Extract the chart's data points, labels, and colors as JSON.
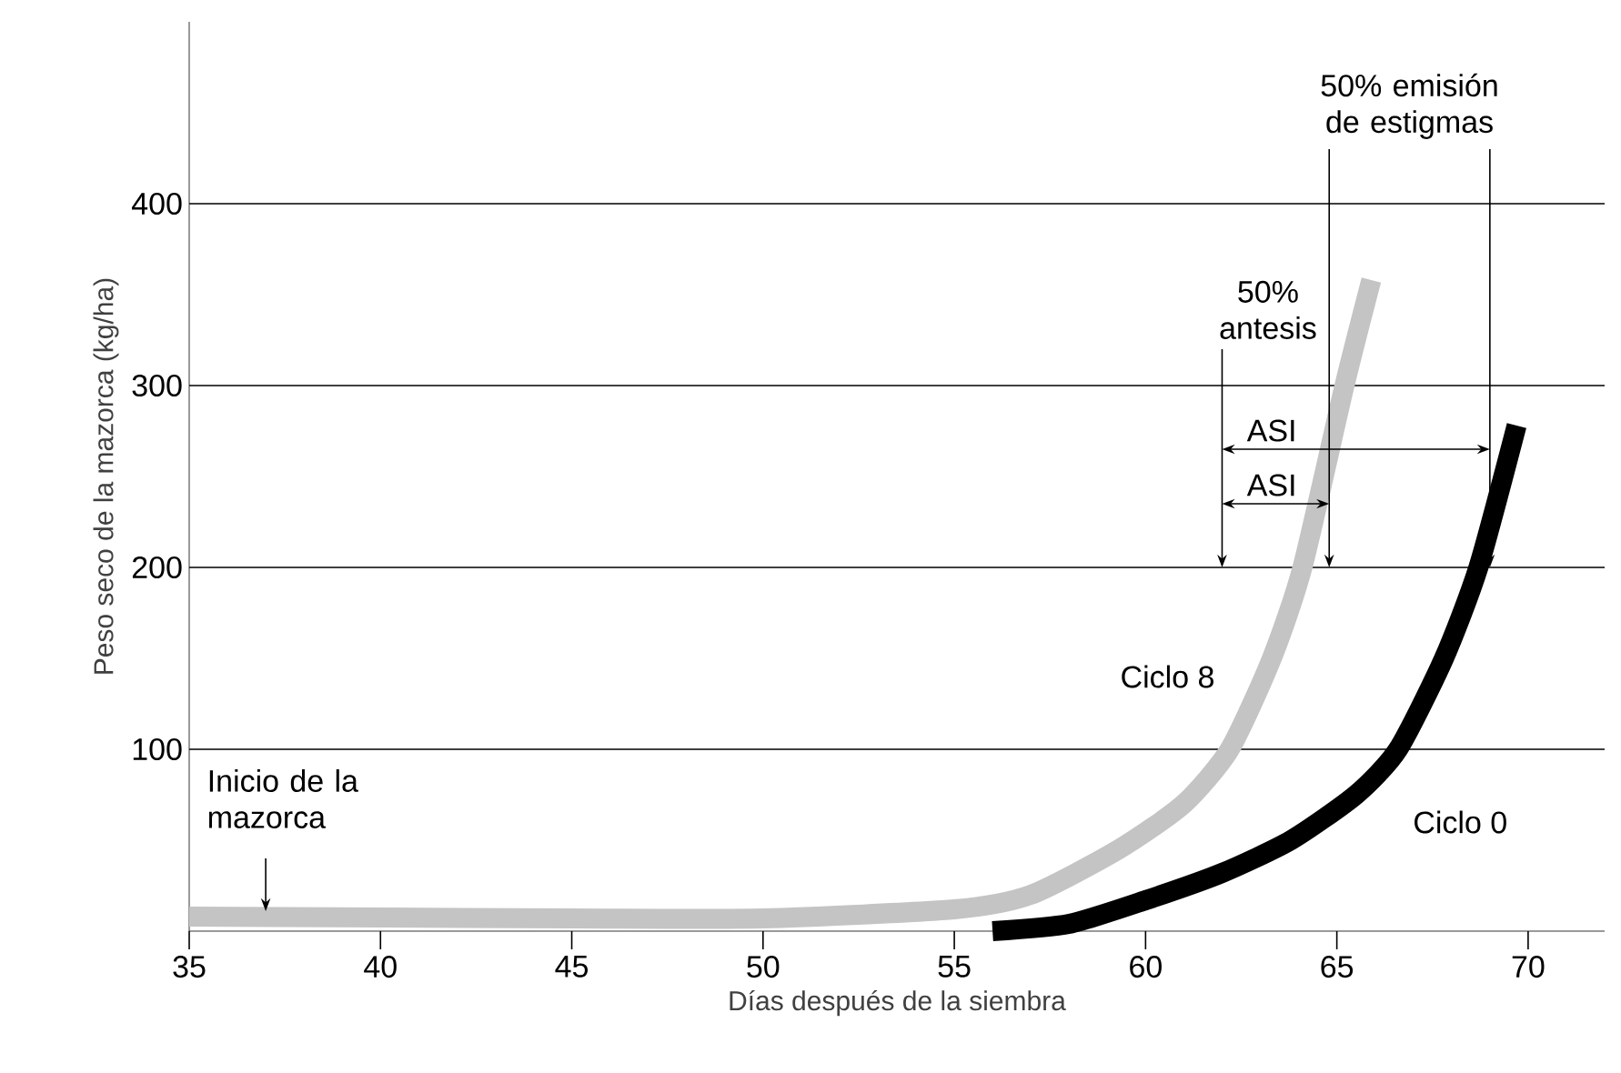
{
  "chart_data": {
    "type": "line",
    "xlabel": "Días después de la siembra",
    "ylabel": "Peso seco de la mazorca (kg/ha)",
    "xlim": [
      35,
      72
    ],
    "xticks": [
      35,
      40,
      45,
      50,
      55,
      60,
      65,
      70
    ],
    "ylim": [
      0,
      500
    ],
    "yticks": [
      100,
      200,
      300,
      400
    ],
    "grid": "y",
    "legend": false,
    "marker": "none",
    "line_style": "solid",
    "series": [
      {
        "name": "Ciclo 8",
        "color": "#c4c4c4",
        "x": [
          35,
          45,
          50,
          55,
          57,
          59.3,
          61,
          62.2,
          63.3,
          64.1,
          65.2,
          65.9
        ],
        "values": [
          8,
          7,
          7,
          12,
          20,
          45,
          70,
          100,
          150,
          200,
          300,
          358
        ]
      },
      {
        "name": "Ciclo 0",
        "color": "#000000",
        "x": [
          56,
          58,
          60,
          62,
          63.8,
          65.5,
          66.6,
          67.8,
          68.7,
          69.7
        ],
        "values": [
          0,
          4,
          17,
          32,
          50,
          75,
          100,
          150,
          200,
          278
        ]
      }
    ],
    "annotations": [
      {
        "text": "Inicio de la mazorca",
        "x": 37,
        "y": 8
      },
      "50% antesis",
      {
        "text": "50% emisión de estigmas",
        "x": 69,
        "y": 200
      },
      "ASI",
      "ASI"
    ]
  }
}
